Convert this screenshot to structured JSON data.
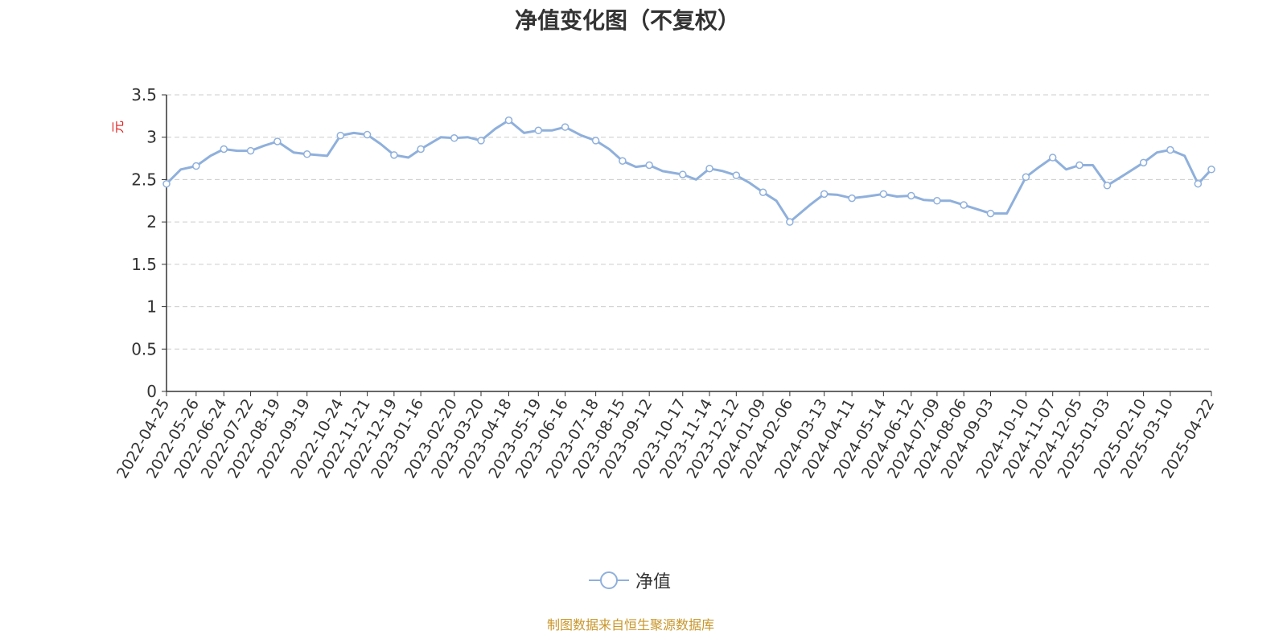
{
  "chart_data": {
    "type": "line",
    "title": "净值变化图（不复权）",
    "ylabel": "元",
    "ylim": [
      0,
      3.5
    ],
    "y_ticks": [
      "0",
      "0.5",
      "1",
      "1.5",
      "2",
      "2.5",
      "3",
      "3.5"
    ],
    "grid": true,
    "legend_position": "bottom-center",
    "series_color": "#8fb0dc",
    "x_tick_labels": [
      "2022-04-25",
      "2022-05-26",
      "2022-06-24",
      "2022-07-22",
      "2022-08-19",
      "2022-09-19",
      "2022-10-24",
      "2022-11-21",
      "2022-12-19",
      "2023-01-16",
      "2023-02-20",
      "2023-03-20",
      "2023-04-18",
      "2023-05-19",
      "2023-06-16",
      "2023-07-18",
      "2023-08-15",
      "2023-09-12",
      "2023-10-17",
      "2023-11-14",
      "2023-12-12",
      "2024-01-09",
      "2024-02-06",
      "2024-03-13",
      "2024-04-11",
      "2024-05-14",
      "2024-06-12",
      "2024-07-09",
      "2024-08-06",
      "2024-09-03",
      "2024-10-10",
      "2024-11-07",
      "2024-12-05",
      "2025-01-03",
      "2025-02-10",
      "2025-03-10",
      "2025-04-22"
    ],
    "series": [
      {
        "name": "净值",
        "x": [
          "2022-04-25",
          "2022-05-10",
          "2022-05-26",
          "2022-06-10",
          "2022-06-24",
          "2022-07-08",
          "2022-07-22",
          "2022-08-05",
          "2022-08-19",
          "2022-09-05",
          "2022-09-19",
          "2022-10-10",
          "2022-10-24",
          "2022-11-07",
          "2022-11-21",
          "2022-12-05",
          "2022-12-19",
          "2023-01-03",
          "2023-01-16",
          "2023-02-06",
          "2023-02-20",
          "2023-03-06",
          "2023-03-20",
          "2023-04-04",
          "2023-04-18",
          "2023-05-04",
          "2023-05-19",
          "2023-06-02",
          "2023-06-16",
          "2023-07-03",
          "2023-07-18",
          "2023-08-01",
          "2023-08-15",
          "2023-08-29",
          "2023-09-12",
          "2023-09-26",
          "2023-10-17",
          "2023-10-31",
          "2023-11-14",
          "2023-11-28",
          "2023-12-12",
          "2023-12-26",
          "2024-01-09",
          "2024-01-23",
          "2024-02-06",
          "2024-02-27",
          "2024-03-13",
          "2024-03-27",
          "2024-04-11",
          "2024-04-26",
          "2024-05-14",
          "2024-05-28",
          "2024-06-12",
          "2024-06-25",
          "2024-07-09",
          "2024-07-23",
          "2024-08-06",
          "2024-08-20",
          "2024-09-03",
          "2024-09-20",
          "2024-10-10",
          "2024-10-24",
          "2024-11-07",
          "2024-11-21",
          "2024-12-05",
          "2024-12-19",
          "2025-01-03",
          "2025-01-20",
          "2025-02-10",
          "2025-02-24",
          "2025-03-10",
          "2025-03-25",
          "2025-04-08",
          "2025-04-22"
        ],
        "values": [
          2.45,
          2.62,
          2.66,
          2.78,
          2.86,
          2.84,
          2.84,
          2.9,
          2.95,
          2.82,
          2.8,
          2.78,
          3.02,
          3.05,
          3.03,
          2.92,
          2.79,
          2.76,
          2.86,
          3.0,
          2.99,
          3.0,
          2.96,
          3.1,
          3.2,
          3.05,
          3.08,
          3.08,
          3.12,
          3.02,
          2.96,
          2.86,
          2.72,
          2.65,
          2.67,
          2.6,
          2.56,
          2.5,
          2.63,
          2.6,
          2.55,
          2.46,
          2.35,
          2.25,
          2.0,
          2.2,
          2.33,
          2.32,
          2.28,
          2.3,
          2.33,
          2.3,
          2.31,
          2.26,
          2.25,
          2.25,
          2.2,
          2.15,
          2.1,
          2.1,
          2.53,
          2.65,
          2.76,
          2.62,
          2.67,
          2.67,
          2.43,
          2.55,
          2.7,
          2.82,
          2.85,
          2.78,
          2.45,
          2.62
        ]
      }
    ]
  },
  "legend": {
    "label": "净值"
  },
  "source_note": "制图数据来自恒生聚源数据库"
}
